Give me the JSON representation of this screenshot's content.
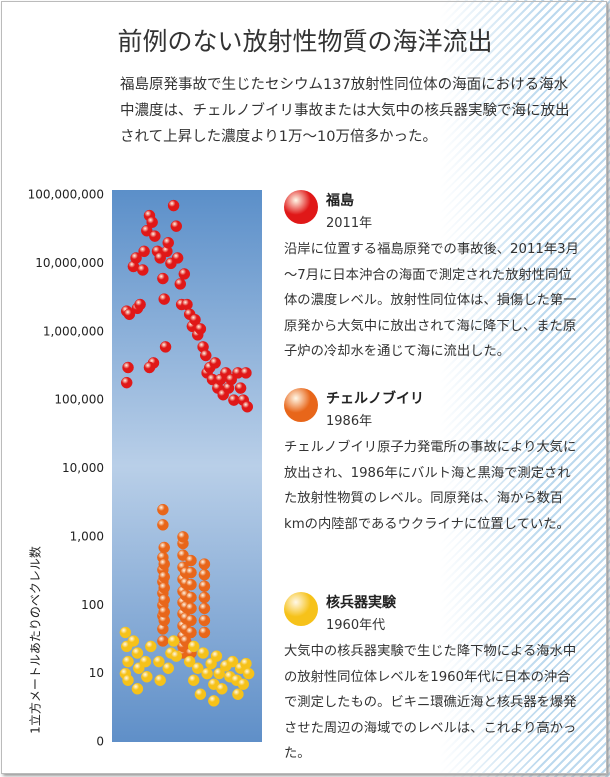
{
  "chart_data": {
    "type": "scatter",
    "title": "前例のない放射性物質の海洋流出",
    "subtitle": "福島原発事故で生じたセシウム137放射性同位体の海面における海水中濃度は、チェルノブイリ事故または大気中の核兵器実験で海に放出されて上昇した濃度より1万～10万倍多かった。",
    "ylabel": "1立方メートルあたりのベクレル数",
    "log_y": true,
    "xlim": [
      0,
      10
    ],
    "ylim": [
      1,
      100000000
    ],
    "yticks": [
      {
        "value": 100000000,
        "label": "100,000,000"
      },
      {
        "value": 10000000,
        "label": "10,000,000"
      },
      {
        "value": 1000000,
        "label": "1,000,000"
      },
      {
        "value": 100000,
        "label": "100,000"
      },
      {
        "value": 10000,
        "label": "10,000"
      },
      {
        "value": 1000,
        "label": "1,000"
      },
      100,
      10,
      0
    ],
    "series": [
      {
        "name": "福島",
        "year": "2011年",
        "color": "#e01818",
        "description": "沿岸に位置する福島原発での事故後、2011年3月～7月に日本沖合の海面で測定された放射性同位体の濃度レベル。放射性同位体は、損傷した第一原発から大気中に放出されて海に降下し、また原子炉の冷却水を通じて海に流出した。",
        "x": [
          0.5,
          0.7,
          0.6,
          0.5,
          1,
          1.2,
          1.3,
          1.5,
          1.7,
          1.8,
          2,
          2.2,
          2.4,
          2.6,
          2.8,
          2.5,
          2.2,
          3,
          3.2,
          3.3,
          3.5,
          3.4,
          3.6,
          3.8,
          4,
          4.2,
          4.3,
          4.5,
          4.6,
          4.8,
          5,
          5.2,
          5.4,
          5.6,
          5.8,
          6,
          6.2,
          6.4,
          6.5,
          6.7,
          6.9,
          7.1,
          7.3,
          7.5,
          7.7,
          7.9,
          8.1,
          8.3,
          8.5,
          8.8,
          9,
          9.2,
          9.4,
          9.5
        ],
        "values": [
          2000000,
          1800000,
          300000,
          180000,
          9000000,
          12000000,
          2200000,
          2500000,
          8000000,
          15000000,
          30000000,
          50000000,
          40000000,
          25000000,
          15000000,
          350000,
          300000,
          12000000,
          6000000,
          3000000,
          15000000,
          600000,
          20000000,
          10000000,
          70000000,
          35000000,
          12000000,
          5000000,
          2500000,
          7000000,
          2500000,
          1800000,
          1200000,
          1500000,
          900000,
          1100000,
          600000,
          450000,
          250000,
          300000,
          200000,
          350000,
          150000,
          200000,
          120000,
          250000,
          150000,
          200000,
          100000,
          250000,
          150000,
          100000,
          250000,
          80000
        ]
      },
      {
        "name": "チェルノブイリ",
        "year": "1986年",
        "color": "#e8661a",
        "description": "チェルノブイリ原子力発電所の事故により大気に放出され、1986年にバルト海と黒海で測定された放射性物質のレベル。同原発は、海から数百kmの内陸部であるウクライナに位置していた。",
        "x": [
          3.2,
          3.2,
          3.2,
          3.2,
          3.2,
          3.2,
          3.2,
          3.2,
          3.2,
          3.2,
          3.3,
          3.3,
          3.3,
          3.3,
          3.3,
          3.3,
          3.3,
          4.7,
          4.7,
          4.7,
          4.7,
          4.7,
          4.7,
          4.7,
          4.7,
          4.7,
          4.7,
          4.7,
          4.7,
          4.9,
          4.9,
          4.9,
          4.9,
          4.9,
          4.9,
          4.9,
          5.3,
          5.3,
          5.3,
          5.3,
          5.3,
          5.3,
          5.3,
          5.3,
          6.3,
          6.3,
          6.3,
          6.3,
          6.3,
          6.3,
          6.3
        ],
        "values": [
          30,
          45,
          70,
          100,
          150,
          220,
          330,
          500,
          1500,
          2500,
          60,
          80,
          120,
          180,
          260,
          400,
          700,
          20,
          25,
          35,
          50,
          75,
          110,
          160,
          240,
          360,
          540,
          800,
          1000,
          30,
          45,
          65,
          95,
          140,
          210,
          300,
          20,
          40,
          60,
          90,
          130,
          200,
          300,
          450,
          40,
          60,
          90,
          130,
          190,
          280,
          400
        ]
      },
      {
        "name": "核兵器実験",
        "year": "1960年代",
        "color": "#f6c21a",
        "description": "大気中の核兵器実験で生じた降下物による海水中の放射性同位体レベルを1960年代に日本の沖合で測定したもの。ビキニ環礁近海と核兵器を爆発させた周辺の海域でのレベルは、これより高かった。",
        "x": [
          0.4,
          0.5,
          0.6,
          0.4,
          0.6,
          1.3,
          1.4,
          1.3,
          1.9,
          2,
          2.3,
          2.9,
          3,
          3.6,
          3.8,
          4,
          4.2,
          5.2,
          5.5,
          5.8,
          6,
          6.2,
          6.5,
          6.8,
          7,
          7.2,
          7.4,
          7.6,
          7.9,
          8.2,
          8.4,
          8.7,
          9,
          9.2,
          9.4,
          9.6,
          8.8,
          7,
          5.5,
          1
        ],
        "values": [
          40,
          25,
          15,
          10,
          8,
          20,
          12,
          6,
          15,
          9,
          25,
          15,
          8,
          12,
          20,
          30,
          18,
          15,
          8,
          12,
          5,
          20,
          10,
          14,
          7,
          18,
          10,
          6,
          13,
          9,
          15,
          8,
          12,
          7,
          14,
          10,
          5,
          4,
          25,
          30
        ]
      }
    ]
  }
}
